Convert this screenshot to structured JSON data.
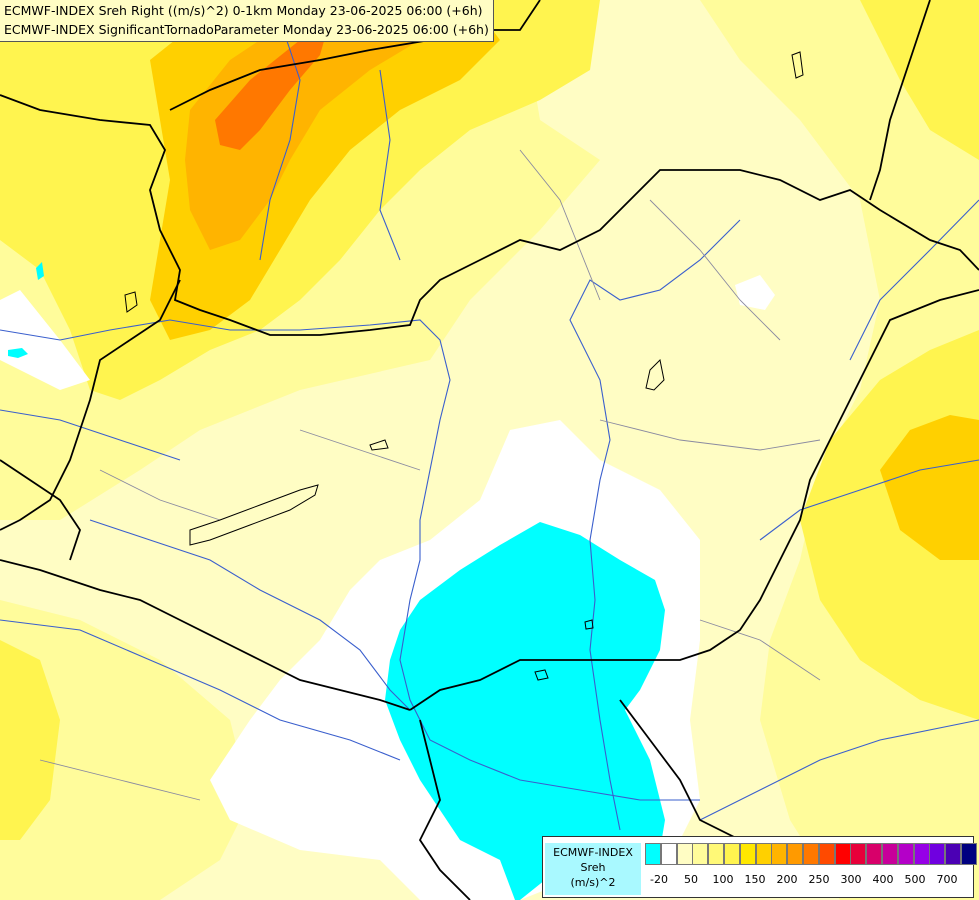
{
  "title": {
    "line1": "ECMWF-INDEX Sreh Right ((m/s)^2) 0-1km Monday 23-06-2025 06:00 (+6h)",
    "line2": "ECMWF-INDEX SignificantTornadoParameter Monday 23-06-2025 06:00 (+6h)"
  },
  "legend": {
    "label_line1": "ECMWF-INDEX",
    "label_line2": "Sreh",
    "label_line3": "(m/s)^2",
    "swatch_colors": [
      "#00ffff",
      "#ffffff",
      "#fffdc4",
      "#fffc9b",
      "#fff977",
      "#fff44f",
      "#ffe800",
      "#ffd000",
      "#ffb400",
      "#ff9a00",
      "#ff7800",
      "#ff4a00",
      "#ff0000",
      "#e8003a",
      "#d8006a",
      "#c8009a",
      "#b400c8",
      "#9600e6",
      "#7000e0",
      "#4b00b4",
      "#000080"
    ],
    "tick_labels": [
      "-20",
      "50",
      "100",
      "150",
      "200",
      "250",
      "300",
      "400",
      "500",
      "700"
    ]
  },
  "colors": {
    "background": "#fffdc4",
    "pale_yellow": "#fffc9b",
    "yellow": "#fff44f",
    "light_orange": "#ffd000",
    "orange": "#ffb400",
    "dark_orange": "#ff7800",
    "cyan": "#00ffff",
    "white": "#ffffff",
    "border": "#000000",
    "river": "#3a5fcd",
    "admin_border": "#8a8aa0"
  }
}
